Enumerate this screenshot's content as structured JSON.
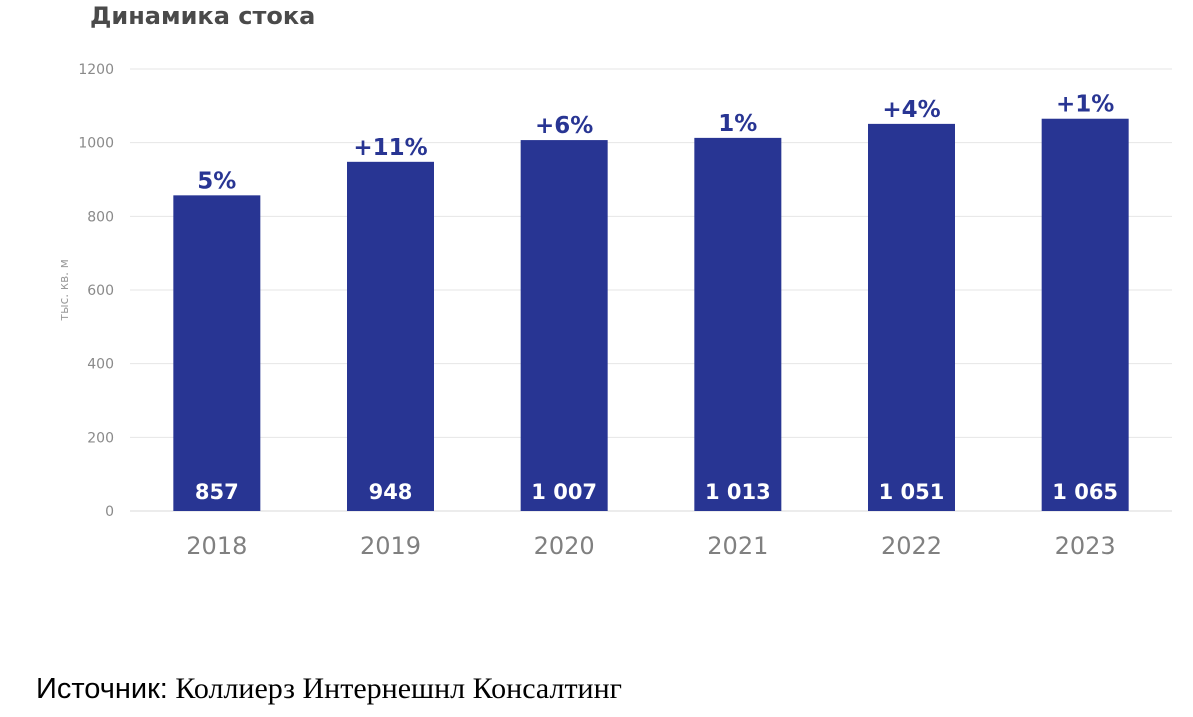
{
  "chart_data": {
    "type": "bar",
    "title": "Динамика стока",
    "ylabel": "тыс. кв. м",
    "ylim": [
      0,
      1200
    ],
    "yticks": [
      0,
      200,
      400,
      600,
      800,
      1000,
      1200
    ],
    "grid": true,
    "categories": [
      "2018",
      "2019",
      "2020",
      "2021",
      "2022",
      "2023"
    ],
    "values": [
      857,
      948,
      1007,
      1013,
      1051,
      1065
    ],
    "value_labels": [
      "857",
      "948",
      "1 007",
      "1 013",
      "1 051",
      "1 065"
    ],
    "growth_labels": [
      "5%",
      "+11%",
      "+6%",
      "1%",
      "+4%",
      "+1%"
    ],
    "colors": {
      "bar": "#283593",
      "grid": "#e6e6e6",
      "tick": "#8a8a8a",
      "year": "#808080"
    }
  },
  "source": {
    "label": "Источник:",
    "text": " Коллиерз Интернешнл Консалтинг"
  }
}
